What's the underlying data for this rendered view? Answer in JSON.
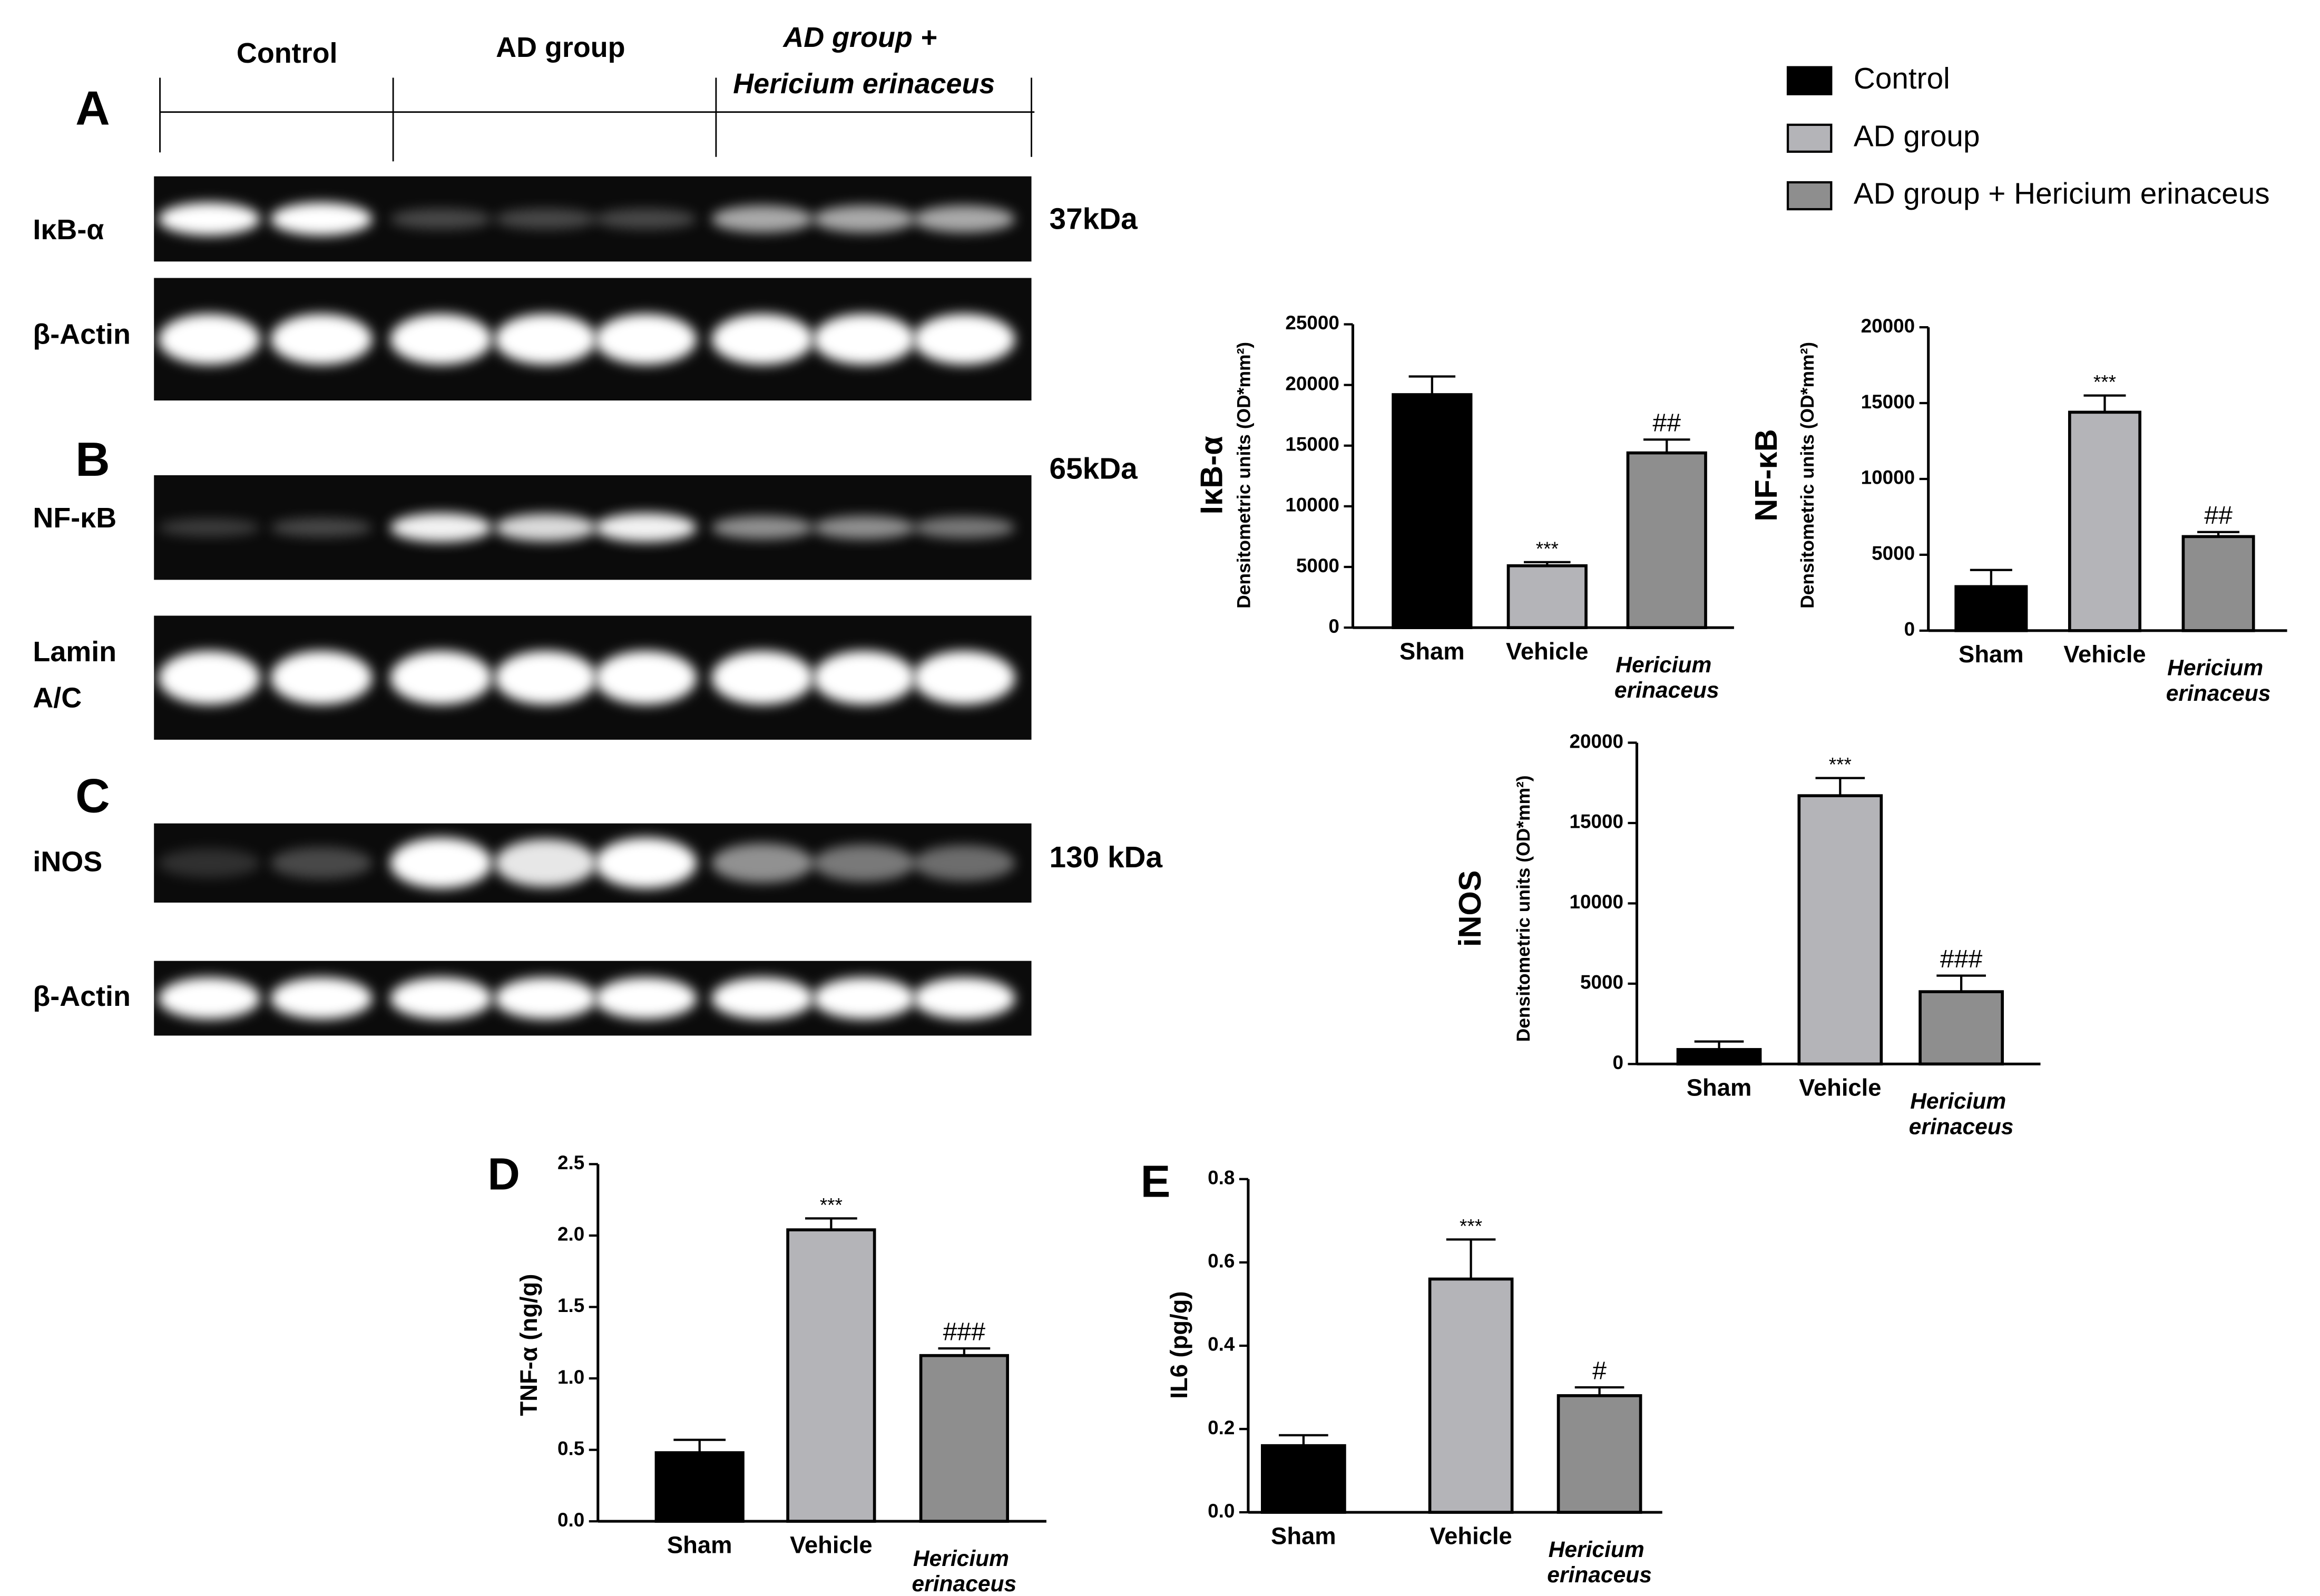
{
  "blot": {
    "groups": [
      "Control",
      "AD group",
      "AD group + Hericium erinaceus"
    ],
    "panels": [
      {
        "letter": "A",
        "rows": [
          {
            "label": "IκB-α",
            "size": "37kDa"
          },
          {
            "label": "β-Actin"
          }
        ]
      },
      {
        "letter": "B",
        "rows": [
          {
            "label": "NF-κB",
            "size": "65kDa"
          },
          {
            "label": "Lamin A/C"
          }
        ]
      },
      {
        "letter": "C",
        "rows": [
          {
            "label": "iNOS",
            "size": "130 kDa"
          },
          {
            "label": "β-Actin"
          }
        ]
      }
    ]
  },
  "legend": {
    "entries": [
      {
        "name": "Control",
        "color": "#000000"
      },
      {
        "name": "AD group",
        "color": "#b4b4b8"
      },
      {
        "name": "AD group + Hericium erinaceus",
        "color": "#8e8e8e"
      }
    ]
  },
  "chart_data": [
    {
      "type": "bar",
      "label": "IκB-α",
      "ylabel": "Densitometric units (OD*mm²)",
      "categories": [
        "Sham",
        "Vehicle",
        "Hericium erinaceus"
      ],
      "italic_categories": [
        false,
        false,
        true
      ],
      "values": [
        19200,
        5100,
        14400
      ],
      "errors": [
        1500,
        300,
        1100
      ],
      "annotations": [
        null,
        "***",
        "##"
      ],
      "colors": [
        "#000000",
        "#b4b4b8",
        "#8e8e8e"
      ],
      "ylim": [
        0,
        25000
      ],
      "yticks": [
        0,
        5000,
        10000,
        15000,
        20000,
        25000
      ]
    },
    {
      "type": "bar",
      "label": "NF-κB",
      "ylabel": "Densitometric units (OD*mm²)",
      "categories": [
        "Sham",
        "Vehicle",
        "Hericium erinaceus"
      ],
      "italic_categories": [
        false,
        false,
        true
      ],
      "values": [
        2900,
        14400,
        6200
      ],
      "errors": [
        1100,
        1100,
        300
      ],
      "annotations": [
        null,
        "***",
        "##"
      ],
      "colors": [
        "#000000",
        "#b4b4b8",
        "#8e8e8e"
      ],
      "ylim": [
        0,
        20000
      ],
      "yticks": [
        0,
        5000,
        10000,
        15000,
        20000
      ]
    },
    {
      "type": "bar",
      "label": "iNOS",
      "ylabel": "Densitometric units (OD*mm²)",
      "categories": [
        "Sham",
        "Vehicle",
        "Hericium erinaceus"
      ],
      "italic_categories": [
        false,
        false,
        true
      ],
      "values": [
        900,
        16700,
        4500
      ],
      "errors": [
        500,
        1100,
        1000
      ],
      "annotations": [
        null,
        "***",
        "###"
      ],
      "colors": [
        "#000000",
        "#b4b4b8",
        "#8e8e8e"
      ],
      "ylim": [
        0,
        20000
      ],
      "yticks": [
        0,
        5000,
        10000,
        15000,
        20000
      ]
    },
    {
      "type": "bar",
      "panel": "D",
      "ylabel": "TNF-α (ng/g)",
      "categories": [
        "Sham",
        "Vehicle",
        "Hericium erinaceus"
      ],
      "italic_categories": [
        false,
        false,
        true
      ],
      "values": [
        0.48,
        2.04,
        1.16
      ],
      "errors": [
        0.09,
        0.08,
        0.05
      ],
      "annotations": [
        null,
        "***",
        "###"
      ],
      "colors": [
        "#000000",
        "#b4b4b8",
        "#8e8e8e"
      ],
      "ylim": [
        0,
        2.5
      ],
      "yticks": [
        {
          "value": 0,
          "label": "0.0"
        },
        0.5,
        {
          "value": 1,
          "label": "1.0"
        },
        1.5,
        {
          "value": 2,
          "label": "2.0"
        },
        2.5
      ]
    },
    {
      "type": "bar",
      "panel": "E",
      "ylabel": "IL6 (pg/g)",
      "categories": [
        "Sham",
        "Vehicle",
        "Hericium erinaceus"
      ],
      "italic_categories": [
        false,
        false,
        true
      ],
      "values": [
        0.16,
        0.56,
        0.28
      ],
      "errors": [
        0.025,
        0.095,
        0.02
      ],
      "annotations": [
        null,
        "***",
        "#"
      ],
      "colors": [
        "#000000",
        "#b4b4b8",
        "#8e8e8e"
      ],
      "ylim": [
        0,
        0.8
      ],
      "yticks": [
        {
          "value": 0,
          "label": "0.0"
        },
        0.2,
        0.4,
        0.6,
        0.8
      ]
    }
  ]
}
